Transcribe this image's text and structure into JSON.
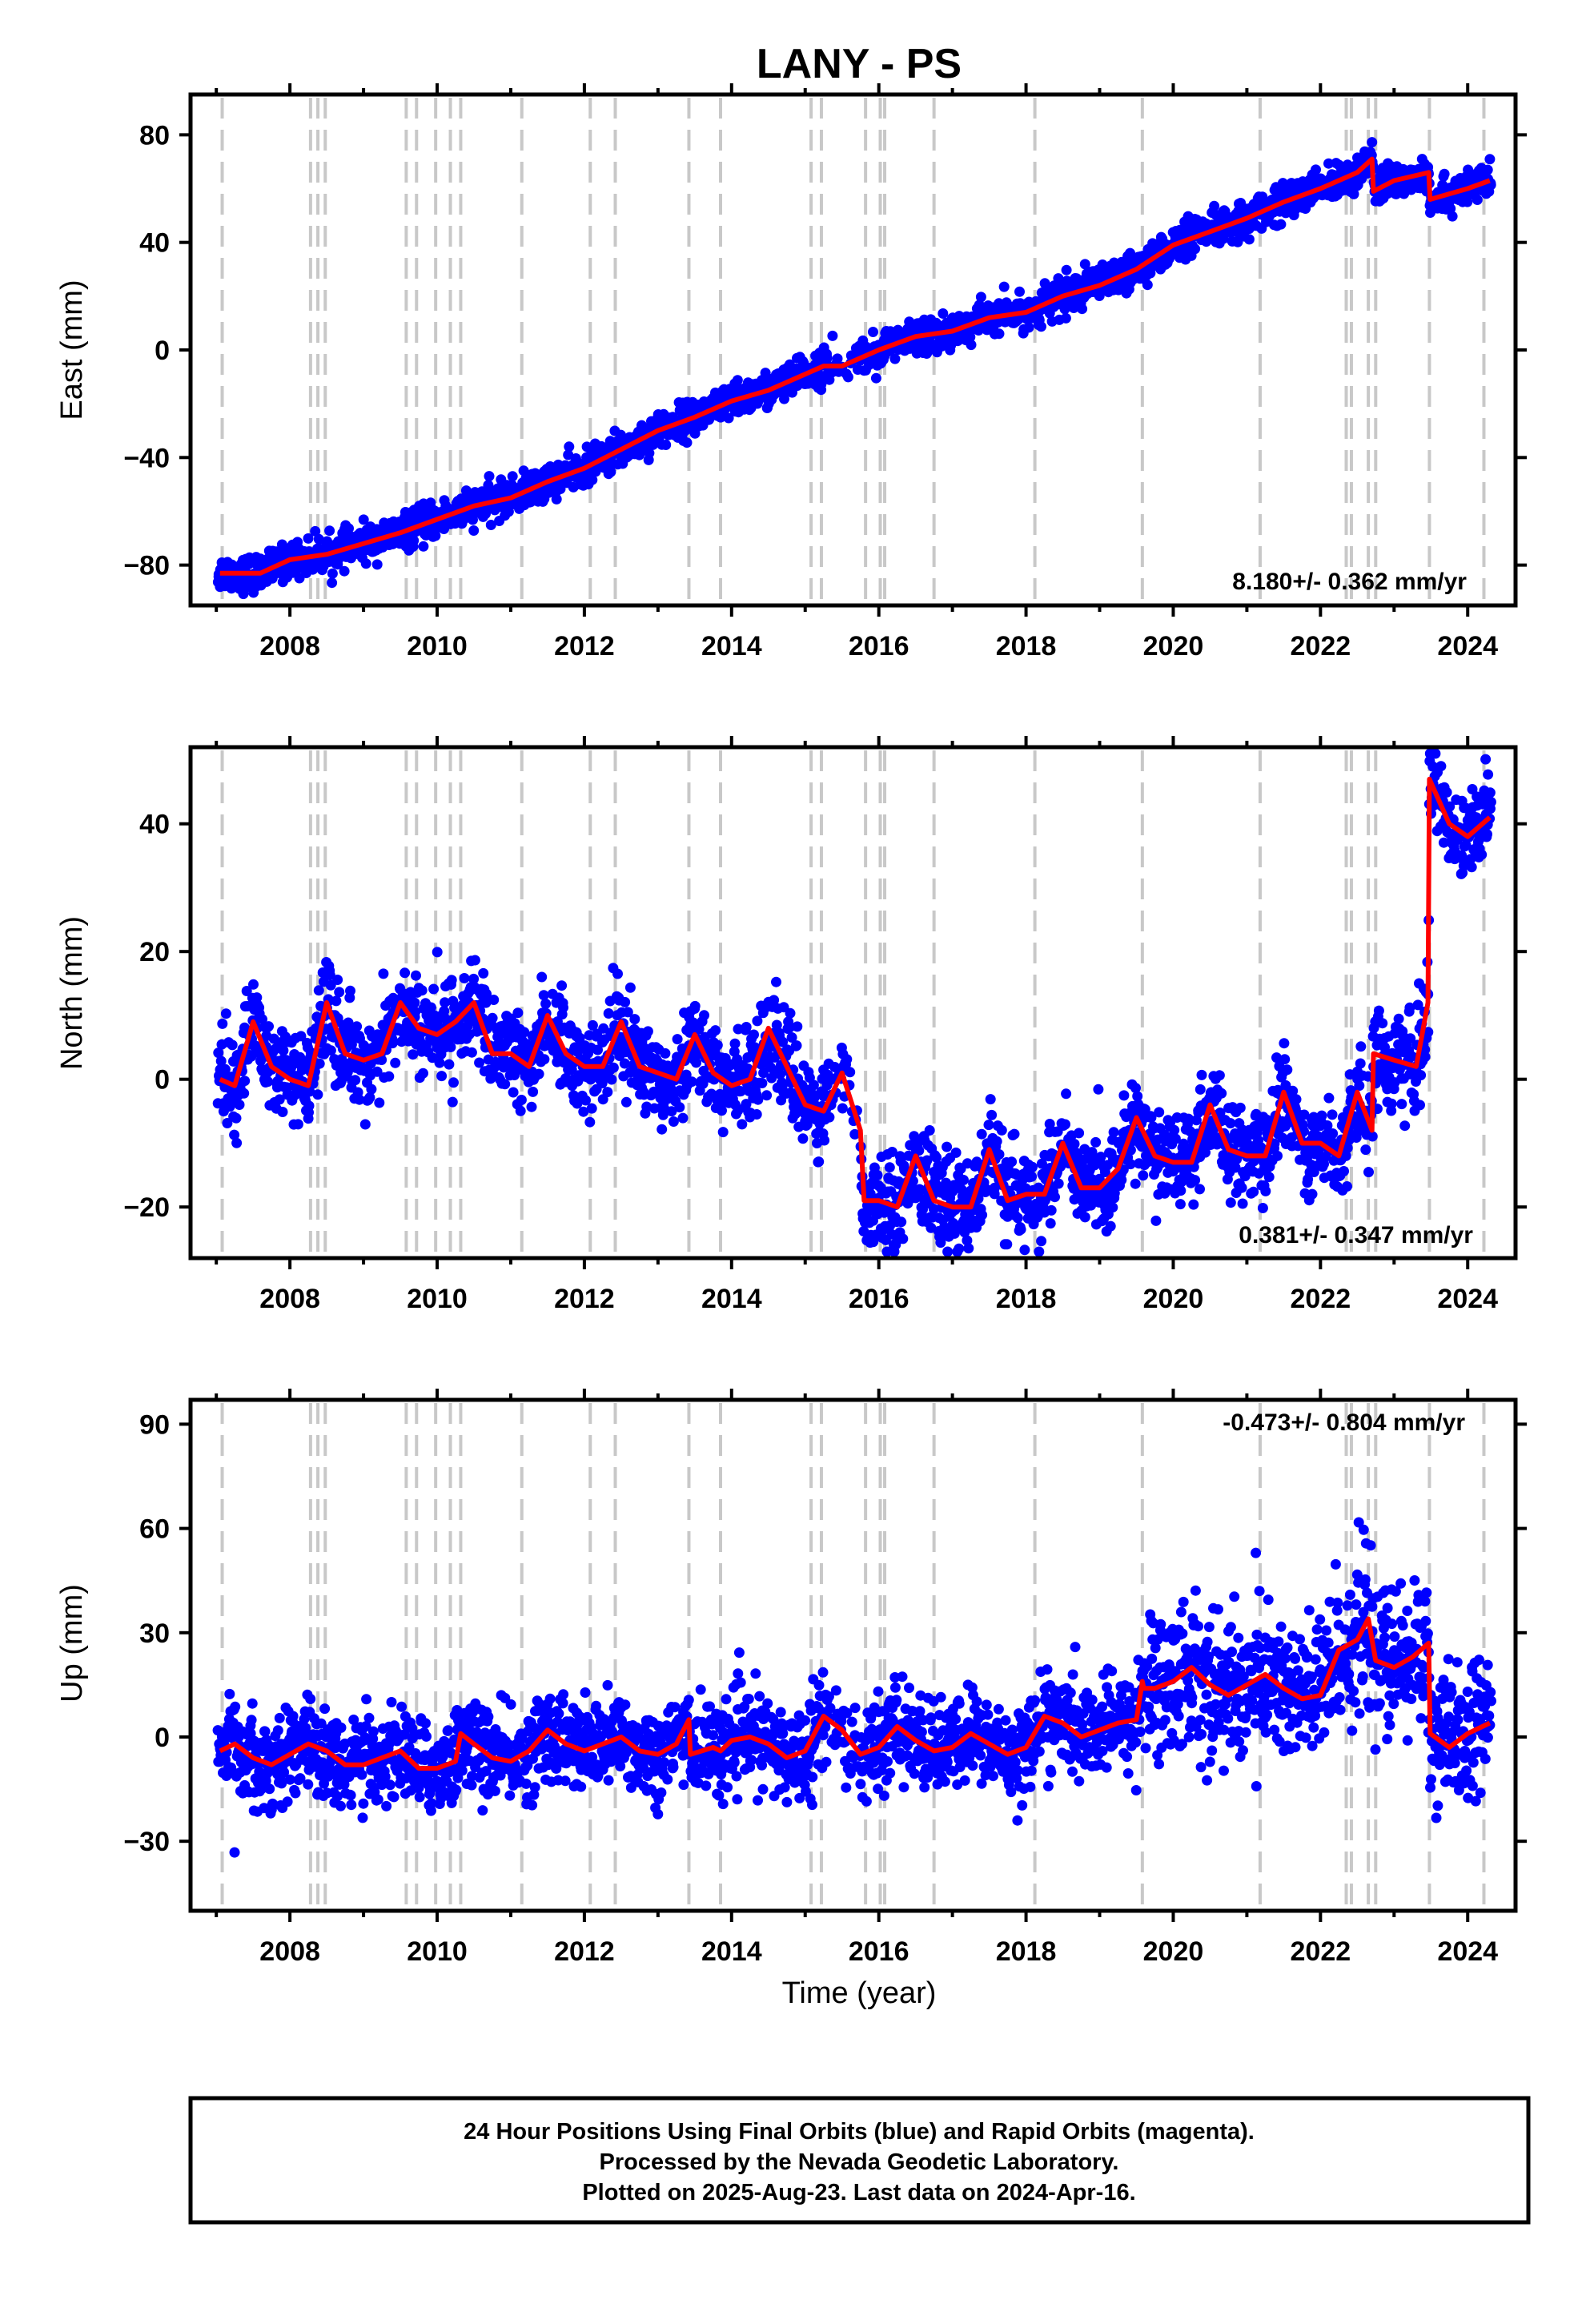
{
  "chart_data": {
    "type": "scatter",
    "title": "LANY - PS",
    "xlabel": "Time (year)",
    "xlim": [
      2006.65,
      2024.65
    ],
    "x_ticks": [
      2008,
      2010,
      2012,
      2014,
      2016,
      2018,
      2020,
      2022,
      2024
    ],
    "x_tick_labels": [
      "2008",
      "2010",
      "2012",
      "2014",
      "2016",
      "2018",
      "2020",
      "2022",
      "2024"
    ],
    "equipment_change_lines": [
      2007.08,
      2008.28,
      2008.38,
      2008.48,
      2009.58,
      2009.72,
      2009.98,
      2010.18,
      2010.32,
      2011.15,
      2012.08,
      2012.42,
      2013.42,
      2013.85,
      2015.08,
      2015.22,
      2015.82,
      2016.02,
      2016.08,
      2016.75,
      2018.12,
      2019.58,
      2021.18,
      2022.35,
      2022.42,
      2022.65,
      2022.75,
      2023.48,
      2024.22
    ],
    "marker_color": "#0000ff",
    "model_color": "#ff0000",
    "change_line_color": "#c8c8c8",
    "panels": [
      {
        "ylabel": "East (mm)",
        "ylim": [
          -95,
          95
        ],
        "y_ticks": [
          -80,
          -40,
          0,
          40,
          80
        ],
        "y_tick_labels": [
          "−80",
          "−40",
          "0",
          "40",
          "80"
        ],
        "rate_label": "8.180+/- 0.362 mm/yr",
        "rate_position": "bottom-right",
        "series": [
          {
            "name": "24 Hour Positions (Final Orbits)",
            "kind": "points"
          },
          {
            "name": "Model",
            "kind": "line",
            "x": [
              2007.05,
              2007.6,
              2008.0,
              2008.5,
              2009.0,
              2009.5,
              2010.0,
              2010.5,
              2011.0,
              2011.5,
              2012.0,
              2012.5,
              2013.0,
              2013.5,
              2014.0,
              2014.5,
              2015.0,
              2015.25,
              2015.5,
              2016.0,
              2016.5,
              2017.0,
              2017.5,
              2018.0,
              2018.5,
              2019.0,
              2019.5,
              2020.0,
              2020.5,
              2021.0,
              2021.5,
              2022.0,
              2022.5,
              2022.7,
              2022.72,
              2023.0,
              2023.47,
              2023.49,
              2024.0,
              2024.3
            ],
            "y": [
              -83,
              -83,
              -78,
              -76,
              -72,
              -68,
              -63,
              -58,
              -55,
              -49,
              -44,
              -37,
              -30,
              -25,
              -19,
              -15,
              -9,
              -6,
              -6,
              0,
              5,
              7,
              12,
              14,
              20,
              24,
              30,
              39,
              44,
              49,
              55,
              60,
              66,
              71,
              59,
              63,
              66,
              56,
              60,
              63
            ]
          }
        ]
      },
      {
        "ylabel": "North (mm)",
        "ylim": [
          -28,
          52
        ],
        "y_ticks": [
          -20,
          0,
          20,
          40
        ],
        "y_tick_labels": [
          "−20",
          "0",
          "20",
          "40"
        ],
        "rate_label": "0.381+/- 0.347 mm/yr",
        "rate_position": "bottom-right",
        "series": [
          {
            "name": "24 Hour Positions (Final Orbits)",
            "kind": "points"
          },
          {
            "name": "Model",
            "kind": "line",
            "x": [
              2007.05,
              2007.25,
              2007.5,
              2007.75,
              2008.0,
              2008.25,
              2008.5,
              2008.75,
              2009.0,
              2009.25,
              2009.5,
              2009.75,
              2010.0,
              2010.25,
              2010.5,
              2010.75,
              2011.0,
              2011.25,
              2011.5,
              2011.75,
              2012.0,
              2012.25,
              2012.5,
              2012.75,
              2013.0,
              2013.25,
              2013.5,
              2013.75,
              2014.0,
              2014.25,
              2014.5,
              2014.75,
              2015.0,
              2015.25,
              2015.5,
              2015.75,
              2015.8,
              2016.0,
              2016.25,
              2016.5,
              2016.75,
              2017.0,
              2017.25,
              2017.5,
              2017.75,
              2018.0,
              2018.25,
              2018.5,
              2018.75,
              2019.0,
              2019.25,
              2019.5,
              2019.75,
              2020.0,
              2020.25,
              2020.5,
              2020.75,
              2021.0,
              2021.25,
              2021.5,
              2021.75,
              2022.0,
              2022.25,
              2022.5,
              2022.7,
              2022.72,
              2023.0,
              2023.3,
              2023.46,
              2023.48,
              2023.75,
              2024.0,
              2024.3
            ],
            "y": [
              0,
              -1,
              9,
              2,
              0,
              -1,
              12,
              4,
              3,
              4,
              12,
              8,
              7,
              9,
              12,
              4,
              4,
              2,
              10,
              4,
              2,
              2,
              9,
              2,
              1,
              0,
              7,
              1,
              -1,
              0,
              8,
              2,
              -4,
              -5,
              1,
              -8,
              -19,
              -19,
              -20,
              -12,
              -19,
              -20,
              -20,
              -11,
              -19,
              -18,
              -18,
              -10,
              -17,
              -17,
              -14,
              -6,
              -12,
              -13,
              -13,
              -4,
              -11,
              -12,
              -12,
              -2,
              -10,
              -10,
              -12,
              -2,
              -8,
              4,
              3,
              2,
              12,
              47,
              40,
              38,
              41
            ]
          }
        ]
      },
      {
        "ylabel": "Up (mm)",
        "ylim": [
          -50,
          97
        ],
        "y_ticks": [
          -30,
          0,
          30,
          60,
          90
        ],
        "y_tick_labels": [
          "−30",
          "0",
          "30",
          "60",
          "90"
        ],
        "rate_label": "-0.473+/- 0.804 mm/yr",
        "rate_position": "top-right",
        "series": [
          {
            "name": "24 Hour Positions (Final Orbits)",
            "kind": "points"
          },
          {
            "name": "Model",
            "kind": "line",
            "x": [
              2007.05,
              2007.25,
              2007.5,
              2007.75,
              2008.0,
              2008.25,
              2008.5,
              2008.75,
              2009.0,
              2009.25,
              2009.5,
              2009.75,
              2010.0,
              2010.25,
              2010.32,
              2010.5,
              2010.75,
              2011.0,
              2011.25,
              2011.5,
              2011.75,
              2012.0,
              2012.25,
              2012.5,
              2012.75,
              2013.0,
              2013.25,
              2013.42,
              2013.44,
              2013.75,
              2013.85,
              2014.0,
              2014.25,
              2014.5,
              2014.75,
              2015.0,
              2015.25,
              2015.5,
              2015.75,
              2016.0,
              2016.25,
              2016.5,
              2016.75,
              2017.0,
              2017.25,
              2017.5,
              2017.75,
              2018.0,
              2018.25,
              2018.5,
              2018.75,
              2019.0,
              2019.25,
              2019.5,
              2019.58,
              2019.6,
              2019.75,
              2020.0,
              2020.25,
              2020.5,
              2020.75,
              2021.0,
              2021.25,
              2021.5,
              2021.75,
              2022.0,
              2022.25,
              2022.5,
              2022.65,
              2022.75,
              2023.0,
              2023.25,
              2023.47,
              2023.49,
              2023.75,
              2024.0,
              2024.3
            ],
            "y": [
              -4,
              -2,
              -6,
              -8,
              -5,
              -2,
              -4,
              -8,
              -8,
              -6,
              -4,
              -9,
              -9,
              -7,
              1,
              -2,
              -6,
              -7,
              -4,
              2,
              -2,
              -4,
              -2,
              0,
              -4,
              -5,
              -2,
              5,
              -5,
              -3,
              -4,
              -1,
              0,
              -2,
              -6,
              -4,
              6,
              2,
              -5,
              -3,
              3,
              -1,
              -4,
              -3,
              1,
              -2,
              -5,
              -3,
              6,
              4,
              0,
              2,
              4,
              5,
              16,
              14,
              14,
              16,
              20,
              15,
              12,
              15,
              18,
              14,
              11,
              12,
              25,
              28,
              34,
              22,
              20,
              23,
              27,
              1,
              -3,
              1,
              4
            ]
          }
        ]
      }
    ]
  },
  "footer": {
    "line1": "24 Hour Positions Using Final Orbits (blue) and Rapid Orbits (magenta).",
    "line2": "Processed by the Nevada Geodetic Laboratory.",
    "line3": "Plotted on 2025-Aug-23. Last data on 2024-Apr-16."
  }
}
